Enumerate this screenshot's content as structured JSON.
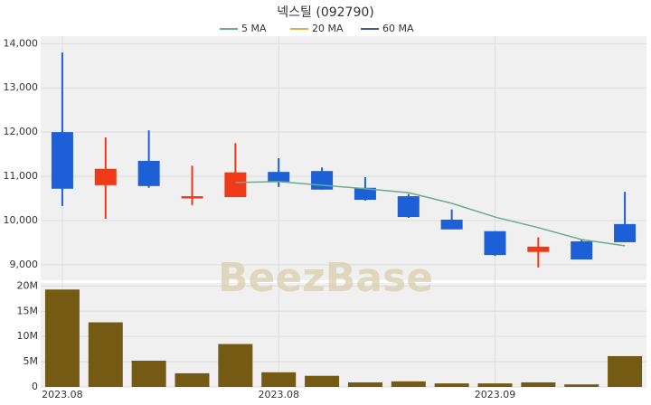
{
  "chart_data": [
    {
      "type": "candlestick",
      "title": "넥스틸 (092790)",
      "watermark": "BeezBase",
      "categories": [
        "2023.08",
        null,
        null,
        null,
        null,
        "2023.08",
        null,
        null,
        null,
        null,
        "2023.09",
        null,
        null,
        null
      ],
      "open": [
        12000,
        10800,
        11350,
        10500,
        10530,
        11100,
        11120,
        10740,
        10550,
        10020,
        9760,
        9290,
        9530,
        9920
      ],
      "high": [
        13800,
        11880,
        12040,
        11240,
        11750,
        11410,
        11200,
        10980,
        10600,
        10250,
        9760,
        9620,
        9560,
        10650
      ],
      "low": [
        10330,
        10040,
        10740,
        10350,
        10530,
        10760,
        10700,
        10450,
        10060,
        9800,
        9200,
        8940,
        9120,
        9510
      ],
      "close": [
        10720,
        11170,
        10780,
        10550,
        11090,
        10880,
        10700,
        10470,
        10080,
        9800,
        9220,
        9410,
        9120,
        9510
      ],
      "up_color": "#f03a17",
      "down_color": "#1c5fd6",
      "series": [
        {
          "name": "5 MA",
          "color": "#6aaa8e",
          "values": [
            null,
            null,
            null,
            null,
            10860,
            10880,
            10800,
            10720,
            10630,
            10390,
            10080,
            9840,
            9570,
            9430
          ]
        },
        {
          "name": "20 MA",
          "color": "#e0b040",
          "values": [
            null,
            null,
            null,
            null,
            null,
            null,
            null,
            null,
            null,
            null,
            null,
            null,
            null,
            null
          ]
        },
        {
          "name": "60 MA",
          "color": "#4a5a8a",
          "values": [
            null,
            null,
            null,
            null,
            null,
            null,
            null,
            null,
            null,
            null,
            null,
            null,
            null,
            null
          ]
        }
      ],
      "ylim": [
        8650,
        14170
      ],
      "yticks": [
        {
          "value": 9000,
          "label": "9,000"
        },
        {
          "value": 10000,
          "label": "10,000"
        },
        {
          "value": 11000,
          "label": "11,000"
        },
        {
          "value": 12000,
          "label": "12,000"
        },
        {
          "value": 13000,
          "label": "13,000"
        },
        {
          "value": 14000,
          "label": "14,000"
        }
      ],
      "grid": true
    },
    {
      "type": "bar",
      "color": "#745a12",
      "values": [
        19300000,
        12800000,
        5200000,
        2700000,
        8500000,
        2900000,
        2200000,
        900000,
        1100000,
        700000,
        700000,
        900000,
        500000,
        6100000
      ],
      "ylim": [
        0,
        20600000
      ],
      "yticks": [
        0,
        {
          "value": 5000000,
          "label": "5M"
        },
        {
          "value": 10000000,
          "label": "10M"
        },
        {
          "value": 15000000,
          "label": "15M"
        },
        {
          "value": 20000000,
          "label": "20M"
        }
      ],
      "grid": true
    }
  ]
}
